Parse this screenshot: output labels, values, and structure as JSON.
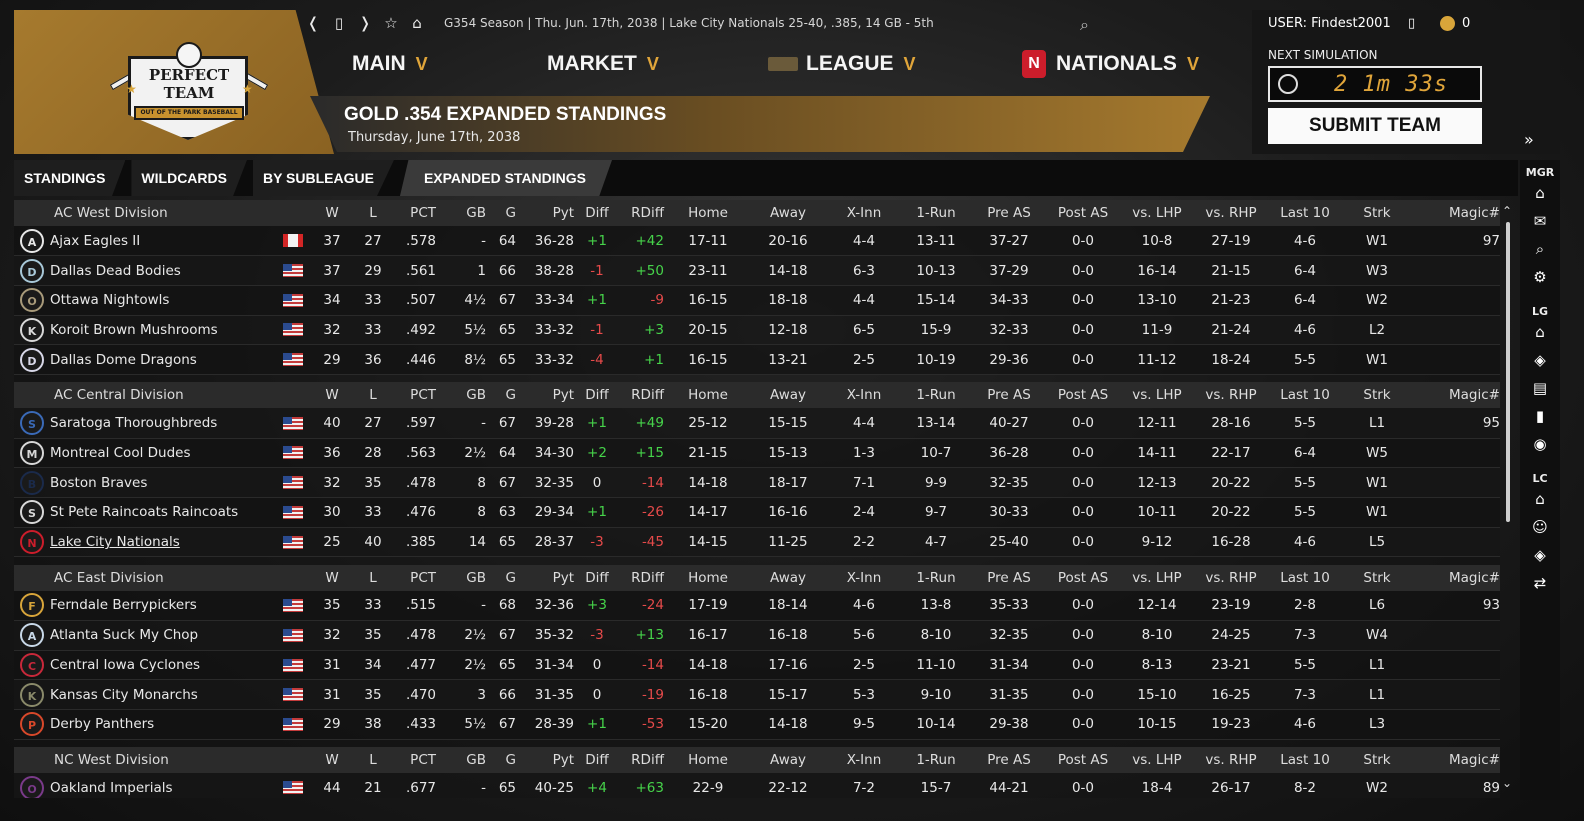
{
  "logo": {
    "line1": "PERFECT",
    "line2": "TEAM",
    "ribbon": "OUT OF THE PARK BASEBALL"
  },
  "topbar": {
    "info": "G354 Season  |  Thu. Jun. 17th, 2038  |  Lake City Nationals  25-40, .385, 14 GB - 5th",
    "icons": [
      "chevron-left-icon",
      "bookmark-icon",
      "chevron-right-icon",
      "star-icon",
      "home-icon",
      "search-icon"
    ]
  },
  "mainnav": {
    "items": [
      {
        "label": "MAIN"
      },
      {
        "label": "MARKET"
      },
      {
        "label": "LEAGUE"
      },
      {
        "label": "NATIONALS"
      }
    ],
    "chevron": "V"
  },
  "header": {
    "title": "GOLD .354 EXPANDED STANDINGS",
    "date": "Thursday, June 17th, 2038"
  },
  "user": {
    "label": "USER: Findest2001",
    "coins": "0",
    "next_sim_label": "NEXT SIMULATION",
    "timer": "2 1m 33s",
    "submit": "SUBMIT TEAM",
    "expand": "»"
  },
  "tabs": [
    "STANDINGS",
    "WILDCARDS",
    "BY SUBLEAGUE",
    "EXPANDED STANDINGS"
  ],
  "columns": [
    "W",
    "L",
    "PCT",
    "GB",
    "G",
    "Pyt",
    "Diff",
    "RDiff",
    "Home",
    "Away",
    "X-Inn",
    "1-Run",
    "Pre AS",
    "Post AS",
    "vs. LHP",
    "vs. RHP",
    "Last 10",
    "Strk",
    "Magic#"
  ],
  "divisions": [
    {
      "name": "AC West Division",
      "teams": [
        {
          "logo": "A",
          "logo_color": "#e8e8e8",
          "name": "Ajax Eagles II",
          "flag": "ca",
          "vals": [
            "37",
            "27",
            ".578",
            "-",
            "64",
            "36-28",
            "+1",
            "+42",
            "17-11",
            "20-16",
            "4-4",
            "13-11",
            "37-27",
            "0-0",
            "10-8",
            "27-19",
            "4-6",
            "W1",
            "97"
          ]
        },
        {
          "logo": "D",
          "logo_color": "#a8c8d8",
          "name": "Dallas Dead Bodies",
          "flag": "us",
          "vals": [
            "37",
            "29",
            ".561",
            "1",
            "66",
            "38-28",
            "-1",
            "+50",
            "23-11",
            "14-18",
            "6-3",
            "10-13",
            "37-29",
            "0-0",
            "16-14",
            "21-15",
            "6-4",
            "W3",
            ""
          ]
        },
        {
          "logo": "O",
          "logo_color": "#a89a7a",
          "name": "Ottawa  Nightowls",
          "flag": "us",
          "vals": [
            "34",
            "33",
            ".507",
            "4½",
            "67",
            "33-34",
            "+1",
            "-9",
            "16-15",
            "18-18",
            "4-4",
            "15-14",
            "34-33",
            "0-0",
            "13-10",
            "21-23",
            "6-4",
            "W2",
            ""
          ]
        },
        {
          "logo": "K",
          "logo_color": "#d8d8d8",
          "name": "Koroit Brown Mushrooms",
          "flag": "us",
          "vals": [
            "32",
            "33",
            ".492",
            "5½",
            "65",
            "33-32",
            "-1",
            "+3",
            "20-15",
            "12-18",
            "6-5",
            "15-9",
            "32-33",
            "0-0",
            "11-9",
            "21-24",
            "4-6",
            "L2",
            ""
          ]
        },
        {
          "logo": "D",
          "logo_color": "#d8d8e8",
          "name": "Dallas Dome Dragons",
          "flag": "us",
          "vals": [
            "29",
            "36",
            ".446",
            "8½",
            "65",
            "33-32",
            "-4",
            "+1",
            "16-15",
            "13-21",
            "2-5",
            "10-19",
            "29-36",
            "0-0",
            "11-12",
            "18-24",
            "5-5",
            "W1",
            ""
          ]
        }
      ]
    },
    {
      "name": "AC Central Division",
      "teams": [
        {
          "logo": "S",
          "logo_color": "#3a6ab8",
          "name": "Saratoga Thoroughbreds",
          "flag": "us",
          "vals": [
            "40",
            "27",
            ".597",
            "-",
            "67",
            "39-28",
            "+1",
            "+49",
            "25-12",
            "15-15",
            "4-4",
            "13-14",
            "40-27",
            "0-0",
            "12-11",
            "28-16",
            "5-5",
            "L1",
            "95"
          ]
        },
        {
          "logo": "M",
          "logo_color": "#d8d8d8",
          "name": "Montreal Cool Dudes",
          "flag": "us",
          "vals": [
            "36",
            "28",
            ".563",
            "2½",
            "64",
            "34-30",
            "+2",
            "+15",
            "21-15",
            "15-13",
            "1-3",
            "10-7",
            "36-28",
            "0-0",
            "14-11",
            "22-17",
            "6-4",
            "W5",
            ""
          ]
        },
        {
          "logo": "B",
          "logo_color": "#1a2a4a",
          "name": "Boston Braves",
          "flag": "us",
          "vals": [
            "32",
            "35",
            ".478",
            "8",
            "67",
            "32-35",
            "0",
            "-14",
            "14-18",
            "18-17",
            "7-1",
            "9-9",
            "32-35",
            "0-0",
            "12-13",
            "20-22",
            "5-5",
            "W1",
            ""
          ]
        },
        {
          "logo": "S",
          "logo_color": "#d8d8d8",
          "name": "St Pete Raincoats Raincoats",
          "flag": "us",
          "vals": [
            "30",
            "33",
            ".476",
            "8",
            "63",
            "29-34",
            "+1",
            "-26",
            "14-17",
            "16-16",
            "2-4",
            "9-7",
            "30-33",
            "0-0",
            "10-11",
            "20-22",
            "5-5",
            "W1",
            ""
          ]
        },
        {
          "logo": "N",
          "logo_color": "#cc1d2b",
          "name": "Lake City Nationals",
          "flag": "us",
          "link": true,
          "vals": [
            "25",
            "40",
            ".385",
            "14",
            "65",
            "28-37",
            "-3",
            "-45",
            "14-15",
            "11-25",
            "2-2",
            "4-7",
            "25-40",
            "0-0",
            "9-12",
            "16-28",
            "4-6",
            "L5",
            ""
          ]
        }
      ]
    },
    {
      "name": "AC East Division",
      "teams": [
        {
          "logo": "F",
          "logo_color": "#d8a53a",
          "name": "Ferndale Berrypickers",
          "flag": "us",
          "vals": [
            "35",
            "33",
            ".515",
            "-",
            "68",
            "32-36",
            "+3",
            "-24",
            "17-19",
            "18-14",
            "4-6",
            "13-8",
            "35-33",
            "0-0",
            "12-14",
            "23-19",
            "2-8",
            "L6",
            "93"
          ]
        },
        {
          "logo": "A",
          "logo_color": "#c8d8e8",
          "name": "Atlanta Suck My Chop",
          "flag": "us",
          "vals": [
            "32",
            "35",
            ".478",
            "2½",
            "67",
            "35-32",
            "-3",
            "+13",
            "16-17",
            "16-18",
            "5-6",
            "8-10",
            "32-35",
            "0-0",
            "8-10",
            "24-25",
            "7-3",
            "W4",
            ""
          ]
        },
        {
          "logo": "C",
          "logo_color": "#c8283a",
          "name": "Central Iowa Cyclones",
          "flag": "us",
          "vals": [
            "31",
            "34",
            ".477",
            "2½",
            "65",
            "31-34",
            "0",
            "-14",
            "14-18",
            "17-16",
            "2-5",
            "11-10",
            "31-34",
            "0-0",
            "8-13",
            "23-21",
            "5-5",
            "L1",
            ""
          ]
        },
        {
          "logo": "K",
          "logo_color": "#8a8a6a",
          "name": "Kansas City Monarchs",
          "flag": "us",
          "vals": [
            "31",
            "35",
            ".470",
            "3",
            "66",
            "31-35",
            "0",
            "-19",
            "16-18",
            "15-17",
            "5-3",
            "9-10",
            "31-35",
            "0-0",
            "15-10",
            "16-25",
            "7-3",
            "L1",
            ""
          ]
        },
        {
          "logo": "P",
          "logo_color": "#d8482a",
          "name": "Derby Panthers",
          "flag": "us",
          "vals": [
            "29",
            "38",
            ".433",
            "5½",
            "67",
            "28-39",
            "+1",
            "-53",
            "15-20",
            "14-18",
            "9-5",
            "10-14",
            "29-38",
            "0-0",
            "10-15",
            "19-23",
            "4-6",
            "L3",
            ""
          ]
        }
      ]
    },
    {
      "name": "NC West Division",
      "teams": [
        {
          "logo": "O",
          "logo_color": "#7a3a8a",
          "name": "Oakland Imperials",
          "flag": "us",
          "vals": [
            "44",
            "21",
            ".677",
            "-",
            "65",
            "40-25",
            "+4",
            "+63",
            "22-9",
            "22-12",
            "7-2",
            "15-7",
            "44-21",
            "0-0",
            "18-4",
            "26-17",
            "8-2",
            "W2",
            "89"
          ]
        }
      ]
    }
  ],
  "rail": {
    "sections": [
      {
        "label": "MGR",
        "icons": [
          "home-icon",
          "mail-icon",
          "search-icon",
          "gear-icon"
        ]
      },
      {
        "label": "LG",
        "icons": [
          "home-icon",
          "diamond-icon",
          "news-icon",
          "stats-icon",
          "baseball-icon"
        ]
      },
      {
        "label": "LC",
        "icons": [
          "home-icon",
          "player-icon",
          "diamond-icon",
          "transfer-icon"
        ]
      }
    ]
  }
}
